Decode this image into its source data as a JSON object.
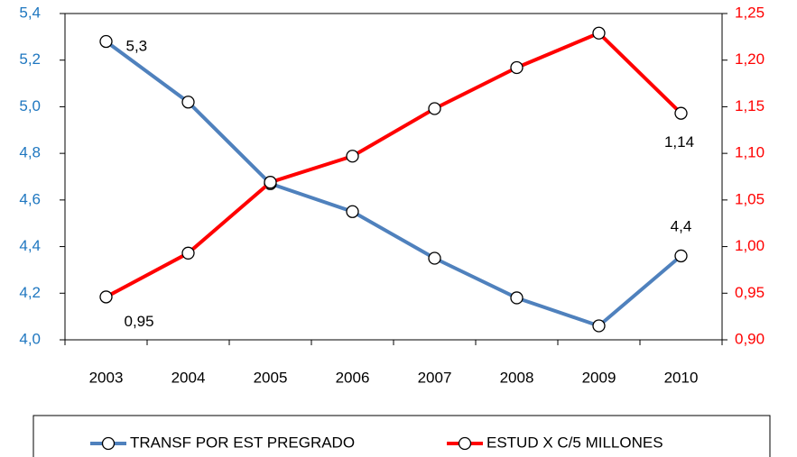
{
  "chart_data": {
    "type": "line",
    "categories": [
      "2003",
      "2004",
      "2005",
      "2006",
      "2007",
      "2008",
      "2009",
      "2010"
    ],
    "series": [
      {
        "name": "TRANSF POR EST PREGRADO",
        "color": "#4f81bd",
        "axis": "y",
        "values": [
          5.28,
          5.02,
          4.67,
          4.55,
          4.35,
          4.18,
          4.06,
          4.36
        ],
        "value_labels": [
          "5,3",
          null,
          null,
          null,
          null,
          null,
          null,
          "4,4"
        ]
      },
      {
        "name": "ESTUD X C/5 MILLONES",
        "color": "#ff0000",
        "axis": "y2",
        "values": [
          0.946,
          0.993,
          1.069,
          1.097,
          1.148,
          1.192,
          1.229,
          1.143
        ],
        "value_labels": [
          "0,95",
          null,
          null,
          null,
          null,
          null,
          null,
          "1,14"
        ]
      }
    ],
    "ylim": [
      4.0,
      5.4
    ],
    "yticks": [
      {
        "value": 4.0,
        "label": "4,0"
      },
      {
        "value": 4.2,
        "label": "4,2"
      },
      {
        "value": 4.4,
        "label": "4,4"
      },
      {
        "value": 4.6,
        "label": "4,6"
      },
      {
        "value": 4.8,
        "label": "4,8"
      },
      {
        "value": 5.0,
        "label": "5,0"
      },
      {
        "value": 5.2,
        "label": "5,2"
      },
      {
        "value": 5.4,
        "label": "5,4"
      }
    ],
    "y2lim": [
      0.9,
      1.25
    ],
    "y2ticks": [
      {
        "value": 0.9,
        "label": "0,90"
      },
      {
        "value": 0.95,
        "label": "0,95"
      },
      {
        "value": 1.0,
        "label": "1,00"
      },
      {
        "value": 1.05,
        "label": "1,05"
      },
      {
        "value": 1.1,
        "label": "1,10"
      },
      {
        "value": 1.15,
        "label": "1,15"
      },
      {
        "value": 1.2,
        "label": "1,20"
      },
      {
        "value": 1.25,
        "label": "1,25"
      }
    ],
    "yaxis_color": "#1f77c0",
    "y2axis_color": "#ff0000",
    "grid": false,
    "legend": "bottom"
  }
}
